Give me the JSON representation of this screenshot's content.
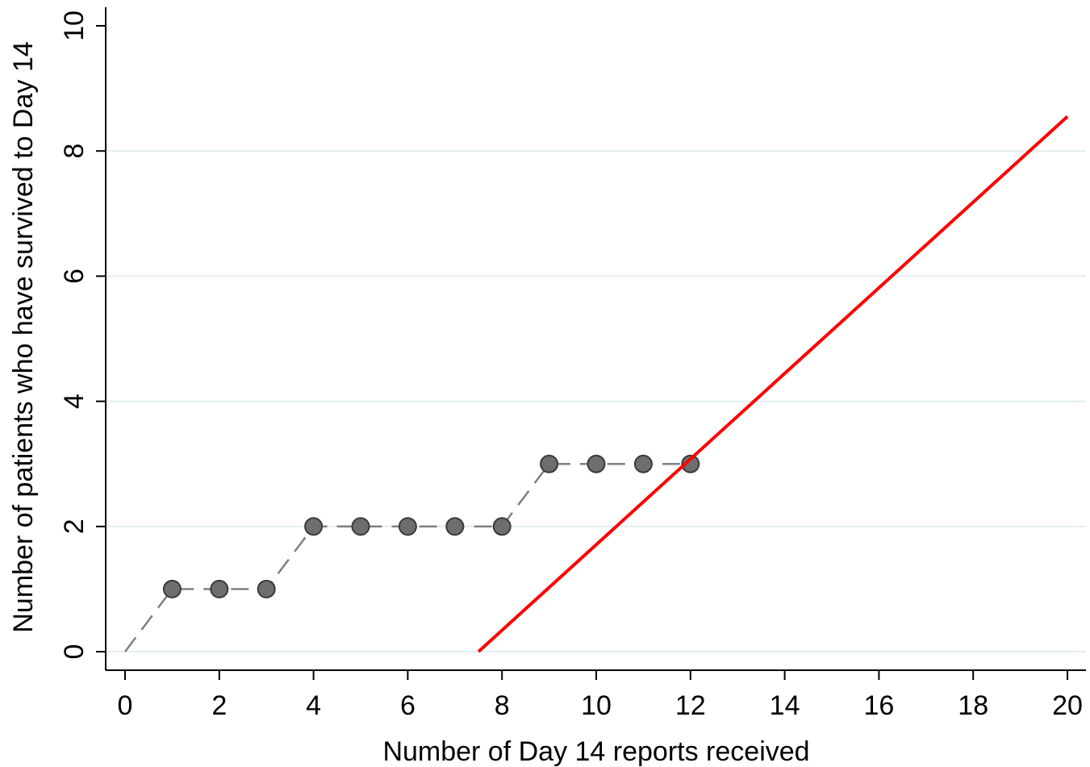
{
  "chart_data": {
    "type": "line",
    "title": "",
    "xlabel": "Number of Day 14 reports received",
    "ylabel": "Number of patients who have survived to Day 14",
    "xlim": [
      0,
      20
    ],
    "ylim": [
      0,
      10
    ],
    "xticks": [
      0,
      2,
      4,
      6,
      8,
      10,
      12,
      14,
      16,
      18,
      20
    ],
    "yticks": [
      0,
      2,
      4,
      6,
      8,
      10
    ],
    "grid": "horizontal",
    "legend": "none",
    "series": [
      {
        "style": "dashed-with-markers",
        "color": "#808080",
        "marker_color": "#6e6e6e",
        "x": [
          0,
          1,
          2,
          3,
          4,
          5,
          6,
          7,
          8,
          9,
          10,
          11,
          12
        ],
        "y": [
          0,
          1,
          1,
          1,
          2,
          2,
          2,
          2,
          2,
          3,
          3,
          3,
          3
        ],
        "marker_from_index": 1
      },
      {
        "style": "solid",
        "color": "#ff0000",
        "x": [
          7.5,
          20
        ],
        "y": [
          0,
          8.55
        ]
      }
    ]
  }
}
